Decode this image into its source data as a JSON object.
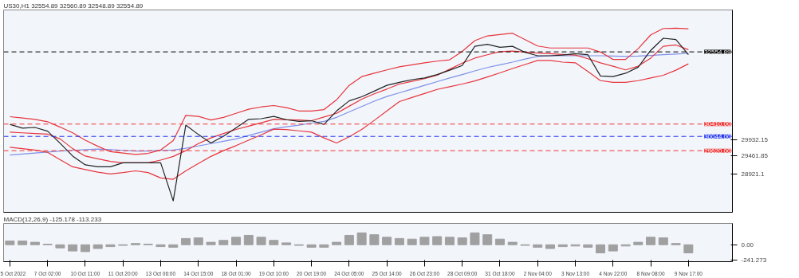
{
  "chart_data": [
    {
      "type": "line",
      "title": "US30,H1  32554.89 32560.89 32548.89 32554.89",
      "tick_labels": "y",
      "grid": false,
      "ylim": [
        27790,
        33800
      ],
      "yticks": [
        29932.15,
        29461.85,
        28921.1
      ],
      "categories": [
        null,
        null,
        null,
        null,
        null,
        null,
        null,
        null,
        null,
        null,
        null,
        null,
        null,
        null,
        null,
        null,
        null,
        null,
        null,
        null,
        null,
        null,
        null,
        null,
        null,
        null,
        null,
        null,
        null,
        null,
        null,
        null,
        null,
        null,
        null,
        null,
        null,
        null,
        null,
        null,
        null,
        null,
        null,
        null,
        null,
        null,
        null,
        null,
        null,
        null,
        null,
        null,
        null,
        null,
        null,
        null,
        null,
        null
      ],
      "series": [
        {
          "color": "#222222",
          "values": [
            30400,
            30290,
            30310,
            30200,
            29840,
            29460,
            29200,
            29140,
            29140,
            29260,
            29260,
            29260,
            29260,
            28130,
            30380,
            30100,
            29850,
            30050,
            30300,
            30550,
            30570,
            30640,
            30540,
            30490,
            30510,
            30400,
            30800,
            31100,
            31220,
            31390,
            31560,
            31650,
            31730,
            31780,
            31880,
            32010,
            32150,
            32720,
            32780,
            32690,
            32720,
            32540,
            32440,
            32440,
            32460,
            32500,
            32470,
            31840,
            31820,
            31920,
            32100,
            32600,
            32960,
            32920,
            32470,
            null,
            null,
            null
          ]
        },
        {
          "color": "#e8343c",
          "values": [
            30170,
            30150,
            30130,
            30110,
            29970,
            29680,
            29460,
            29380,
            29300,
            29260,
            29260,
            29260,
            29340,
            29450,
            29620,
            29830,
            30000,
            30130,
            30250,
            30350,
            30450,
            30550,
            30540,
            30530,
            30510,
            30620,
            30730,
            30940,
            31150,
            31310,
            31450,
            31600,
            31680,
            31760,
            31860,
            32040,
            32220,
            32370,
            32470,
            32560,
            32580,
            32550,
            32520,
            32500,
            32480,
            32460,
            32350,
            32230,
            32130,
            32020,
            32130,
            32370,
            32720,
            32760,
            32620,
            null,
            null,
            null
          ]
        },
        {
          "color": "#e8343c",
          "values": [
            30630,
            30590,
            30550,
            30480,
            30320,
            30150,
            29930,
            29750,
            29590,
            29550,
            29510,
            29540,
            29640,
            29920,
            30670,
            30640,
            30530,
            30610,
            30730,
            30850,
            30920,
            30960,
            30900,
            30800,
            30800,
            30840,
            31130,
            31560,
            31820,
            31920,
            32020,
            32110,
            32170,
            32230,
            32280,
            32320,
            32570,
            32890,
            33030,
            33070,
            33110,
            32920,
            32730,
            32670,
            32670,
            32670,
            32670,
            32550,
            32330,
            32330,
            32650,
            33060,
            33250,
            33260,
            33240,
            null,
            null,
            null
          ]
        },
        {
          "color": "#e8343c",
          "values": [
            29720,
            29680,
            29640,
            29570,
            29350,
            29140,
            29060,
            28980,
            28930,
            28970,
            29020,
            28970,
            28810,
            28770,
            29020,
            29240,
            29450,
            29620,
            29770,
            29930,
            30090,
            30260,
            30250,
            30210,
            30170,
            30000,
            29850,
            30030,
            30250,
            30520,
            30800,
            31080,
            31200,
            31320,
            31440,
            31520,
            31600,
            31690,
            31810,
            31930,
            32060,
            32180,
            32300,
            32300,
            32250,
            32230,
            31970,
            31700,
            31650,
            31650,
            31700,
            31780,
            31860,
            32010,
            32200,
            null,
            null,
            null
          ]
        },
        {
          "color": "#7f8fe8",
          "values": [
            29490,
            29520,
            29550,
            29580,
            29610,
            29630,
            29650,
            29670,
            29650,
            29630,
            29610,
            29610,
            29630,
            29640,
            29690,
            29760,
            29830,
            29900,
            29970,
            30070,
            30170,
            30270,
            30330,
            30380,
            30440,
            30490,
            30610,
            30770,
            30930,
            31090,
            31230,
            31340,
            31450,
            31560,
            31670,
            31780,
            31880,
            31990,
            32090,
            32170,
            32250,
            32340,
            32420,
            32440,
            32440,
            32440,
            32440,
            32440,
            32430,
            32420,
            32430,
            32450,
            32470,
            32490,
            32510,
            null,
            null,
            null
          ]
        }
      ],
      "ref_lines": [
        {
          "axis": "y",
          "value": 32554.89,
          "label": "32554.89",
          "color": "#000000",
          "line_style": "dashed"
        },
        {
          "axis": "y",
          "value": 30410.0,
          "label": "30410.00",
          "color": "#ee3333",
          "line_style": "dashed"
        },
        {
          "axis": "y",
          "value": 30044.0,
          "label": "30044.00",
          "color": "#2233ee",
          "line_style": "dashed"
        },
        {
          "axis": "y",
          "value": 29620.0,
          "label": "29620.00",
          "color": "#ee3333",
          "line_style": "dashed"
        }
      ]
    },
    {
      "type": "bar",
      "title": "MACD(12,26,9) -125.178 -113.233",
      "grid": false,
      "ylim": [
        -270,
        340
      ],
      "yticks": [
        {
          "value": 0,
          "label": "0.00"
        },
        {
          "value": -241.273,
          "label": "-241.273"
        }
      ],
      "categories": [
        "5 Oct 2022",
        null,
        null,
        "7 Oct 02:00",
        null,
        null,
        "10 Oct 11:00",
        null,
        null,
        "11 Oct 20:00",
        null,
        null,
        "13 Oct 06:00",
        null,
        null,
        "14 Oct 15:00",
        null,
        null,
        "18 Oct 01:00",
        null,
        null,
        "19 Oct 10:00",
        null,
        null,
        "20 Oct 19:00",
        null,
        null,
        "24 Oct 05:00",
        null,
        null,
        "25 Oct 14:00",
        null,
        null,
        "26 Oct 23:00",
        null,
        null,
        "28 Oct 09:00",
        null,
        null,
        "31 Oct 18:00",
        null,
        null,
        "2 Nov 04:00",
        null,
        null,
        "3 Nov 13:00",
        null,
        null,
        "4 Nov 22:00",
        null,
        null,
        "8 Nov 08:00",
        null,
        null,
        "9 Nov 17:00",
        null,
        null,
        null
      ],
      "series": [
        {
          "color": "#a0a0a0",
          "values": [
            60,
            60,
            40,
            10,
            -50,
            -100,
            -110,
            -60,
            -30,
            -10,
            20,
            10,
            -30,
            -40,
            100,
            110,
            40,
            70,
            120,
            150,
            120,
            70,
            30,
            -10,
            -40,
            -40,
            40,
            150,
            190,
            160,
            120,
            100,
            90,
            120,
            130,
            120,
            110,
            190,
            160,
            90,
            40,
            -10,
            -40,
            -60,
            -30,
            -20,
            -40,
            -130,
            -100,
            -20,
            40,
            120,
            110,
            20,
            -130,
            null,
            null,
            null
          ]
        }
      ]
    }
  ]
}
